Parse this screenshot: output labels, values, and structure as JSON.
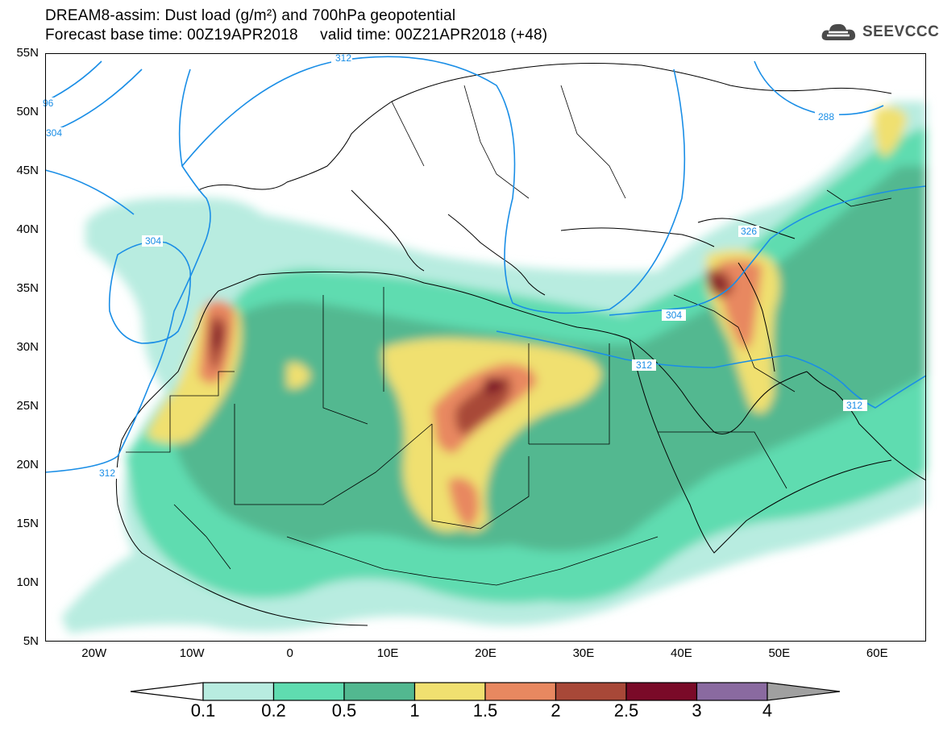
{
  "title": {
    "line1": "DREAM8-assim: Dust load (g/m²) and 700hPa geopotential",
    "line2": "Forecast base time: 00Z19APR2018     valid time: 00Z21APR2018 (+48)"
  },
  "logo": {
    "text": "SEEVCCC",
    "icon": "cloud-icon"
  },
  "map": {
    "lon_range": [
      -25,
      65
    ],
    "lat_range": [
      5,
      55
    ],
    "lat_ticks": [
      {
        "value": 55,
        "label": "55N"
      },
      {
        "value": 50,
        "label": "50N"
      },
      {
        "value": 45,
        "label": "45N"
      },
      {
        "value": 40,
        "label": "40N"
      },
      {
        "value": 35,
        "label": "35N"
      },
      {
        "value": 30,
        "label": "30N"
      },
      {
        "value": 25,
        "label": "25N"
      },
      {
        "value": 20,
        "label": "20N"
      },
      {
        "value": 15,
        "label": "15N"
      },
      {
        "value": 10,
        "label": "10N"
      },
      {
        "value": 5,
        "label": "5N"
      }
    ],
    "lon_ticks": [
      {
        "value": -20,
        "label": "20W"
      },
      {
        "value": -10,
        "label": "10W"
      },
      {
        "value": 0,
        "label": "0"
      },
      {
        "value": 10,
        "label": "10E"
      },
      {
        "value": 20,
        "label": "20E"
      },
      {
        "value": 30,
        "label": "30E"
      },
      {
        "value": 40,
        "label": "40E"
      },
      {
        "value": 50,
        "label": "50E"
      },
      {
        "value": 60,
        "label": "60E"
      }
    ],
    "contour_labels": [
      "312",
      "96",
      "304",
      "304",
      "312",
      "304",
      "312",
      "326",
      "288",
      "312"
    ]
  },
  "colorbar": {
    "levels": [
      "0.1",
      "0.2",
      "0.5",
      "1",
      "1.5",
      "2",
      "2.5",
      "3",
      "4"
    ],
    "colors": [
      "#ffffff",
      "#b8ece0",
      "#5fdcb0",
      "#52b890",
      "#f0e070",
      "#e88860",
      "#a84838",
      "#7a0a28",
      "#8a6aa0",
      "#a0a0a0"
    ]
  }
}
